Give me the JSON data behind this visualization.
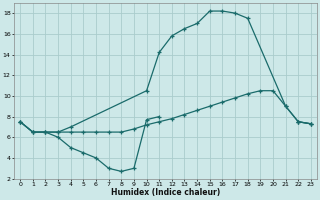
{
  "xlabel": "Humidex (Indice chaleur)",
  "bg_color": "#cde8e8",
  "grid_color": "#aacccc",
  "line_color": "#1a6b6b",
  "xlim": [
    -0.5,
    23.5
  ],
  "ylim": [
    2,
    19
  ],
  "xticks": [
    0,
    1,
    2,
    3,
    4,
    5,
    6,
    7,
    8,
    9,
    10,
    11,
    12,
    13,
    14,
    15,
    16,
    17,
    18,
    19,
    20,
    21,
    22,
    23
  ],
  "yticks": [
    2,
    4,
    6,
    8,
    10,
    12,
    14,
    16,
    18
  ],
  "series": [
    {
      "segments": [
        {
          "x": [
            0,
            1,
            2,
            3,
            4,
            5,
            6,
            7,
            8,
            9,
            10,
            11
          ],
          "y": [
            7.5,
            6.5,
            6.5,
            6.0,
            5.0,
            4.5,
            4.0,
            3.0,
            2.7,
            3.0,
            7.7,
            8.0
          ]
        },
        {
          "x": [
            22,
            23
          ],
          "y": [
            7.5,
            7.3
          ]
        }
      ]
    },
    {
      "segments": [
        {
          "x": [
            0,
            1,
            2,
            3,
            4,
            10,
            11,
            12,
            13,
            14,
            15,
            16,
            17,
            18,
            21,
            22,
            23
          ],
          "y": [
            7.5,
            6.5,
            6.5,
            6.5,
            7.0,
            10.5,
            14.2,
            15.8,
            16.5,
            17.0,
            18.2,
            18.2,
            18.0,
            17.5,
            9.0,
            7.5,
            7.3
          ]
        }
      ]
    },
    {
      "segments": [
        {
          "x": [
            0,
            1,
            2,
            3,
            4,
            5,
            6,
            7,
            8,
            9,
            10,
            11,
            12,
            13,
            14,
            15,
            16,
            17,
            18,
            19,
            20,
            21,
            22,
            23
          ],
          "y": [
            7.5,
            6.5,
            6.5,
            6.5,
            6.5,
            6.5,
            6.5,
            6.5,
            6.5,
            6.8,
            7.2,
            7.5,
            7.8,
            8.2,
            8.6,
            9.0,
            9.4,
            9.8,
            10.2,
            10.5,
            10.5,
            9.0,
            7.5,
            7.3
          ]
        }
      ]
    }
  ]
}
